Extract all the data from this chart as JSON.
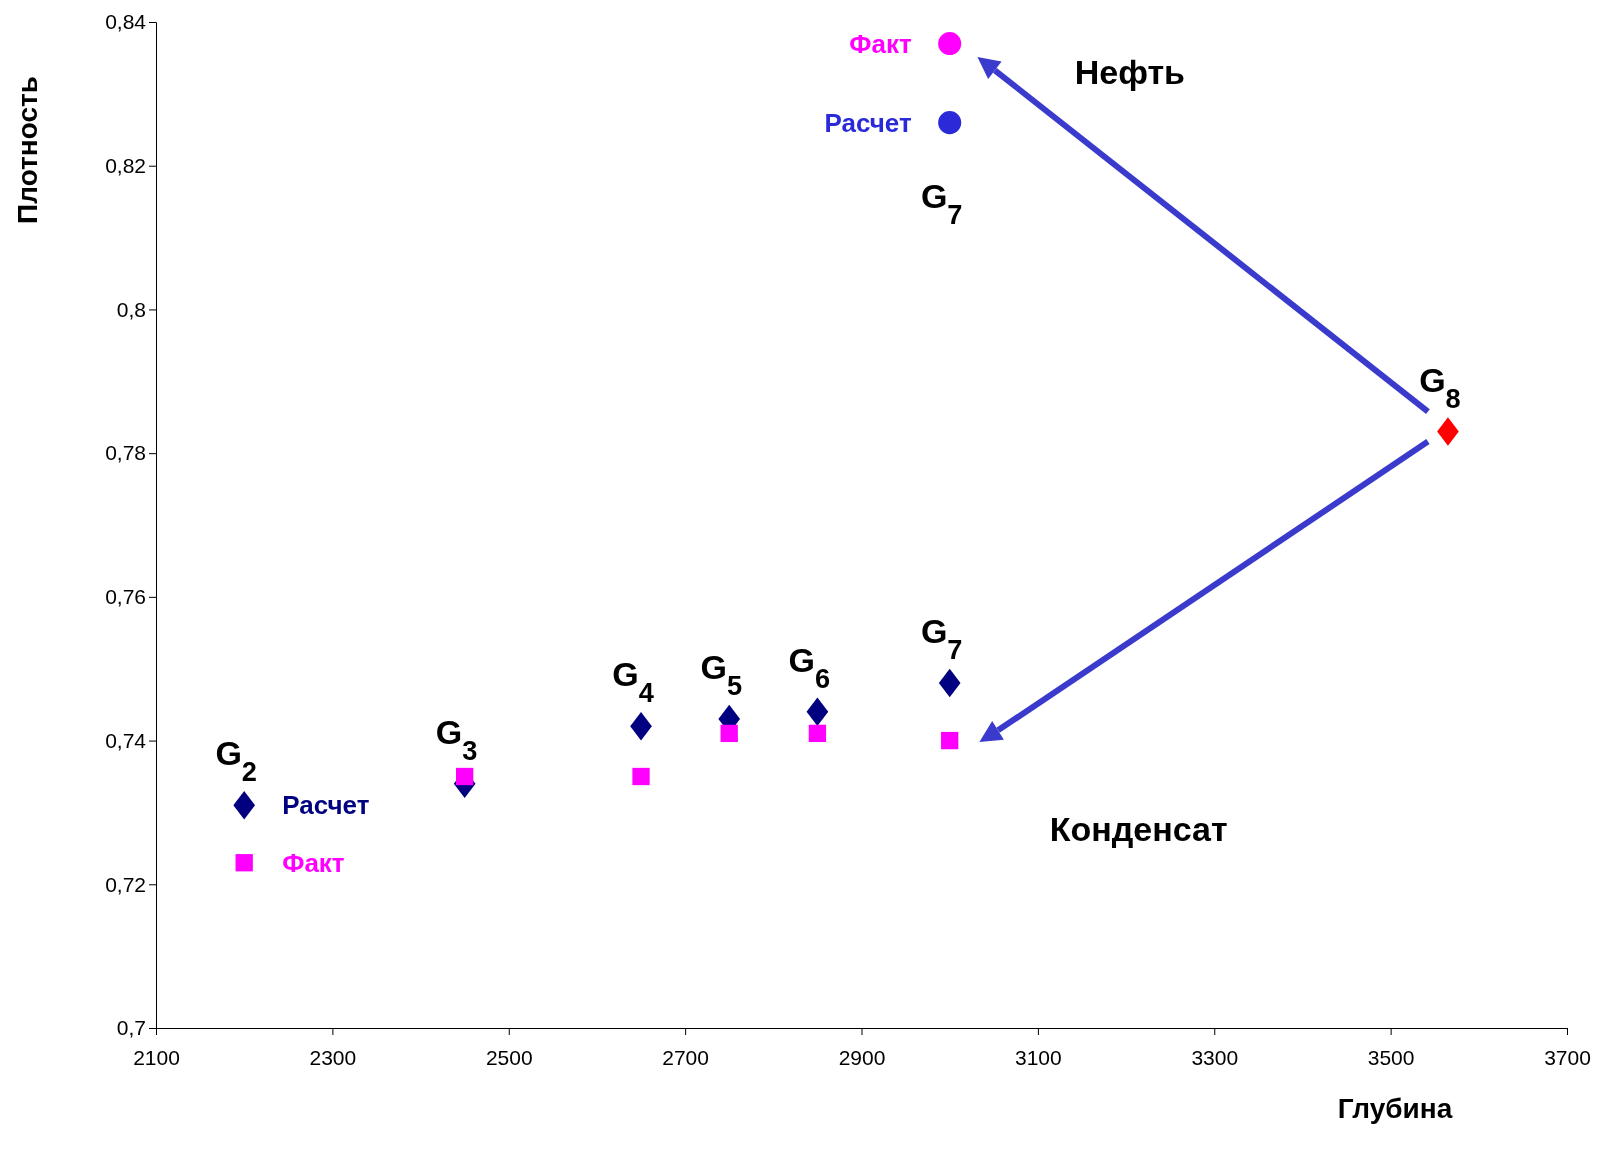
{
  "chart_data": {
    "type": "scatter",
    "xlabel": "Глубина",
    "ylabel": "Плотность",
    "xlim": [
      2100,
      3700
    ],
    "xticks": [
      2100,
      2300,
      2500,
      2700,
      2900,
      3100,
      3300,
      3500,
      3700
    ],
    "ylim": [
      0.7,
      0.84
    ],
    "yticks": [
      {
        "value": 0.7,
        "label": "0,7"
      },
      {
        "value": 0.72,
        "label": "0,72"
      },
      {
        "value": 0.74,
        "label": "0,74"
      },
      {
        "value": 0.76,
        "label": "0,76"
      },
      {
        "value": 0.78,
        "label": "0,78"
      },
      {
        "value": 0.8,
        "label": "0,8"
      },
      {
        "value": 0.82,
        "label": "0,82"
      },
      {
        "value": 0.84,
        "label": "0,84"
      }
    ],
    "grid": false,
    "series": [
      {
        "name": "Расчет",
        "color": "#000080",
        "marker": "diamond",
        "x": [
          2200,
          2450,
          2650,
          2750,
          2850,
          3000
        ],
        "values": [
          0.731,
          0.734,
          0.742,
          0.743,
          0.744,
          0.748
        ]
      },
      {
        "name": "Факт",
        "color": "#ff00ff",
        "marker": "square",
        "x": [
          2200,
          2450,
          2650,
          2750,
          2850,
          3000
        ],
        "values": [
          0.723,
          0.735,
          0.735,
          0.741,
          0.741,
          0.74
        ]
      },
      {
        "name": "Факт",
        "color": "#ff00ff",
        "marker": "circle",
        "x": [
          3000
        ],
        "values": [
          0.837
        ]
      },
      {
        "name": "Расчет",
        "color": "#2a2ad8",
        "marker": "circle",
        "x": [
          3000
        ],
        "values": [
          0.826
        ]
      },
      {
        "color": "#ff0000",
        "marker": "diamond",
        "x": [
          3565
        ],
        "values": [
          0.783
        ]
      }
    ],
    "annotations": [
      {
        "text": "G$_{2}$",
        "x": 2200,
        "y": 0.731
      },
      {
        "text": "G$_{3}$",
        "x": 2450,
        "y": 0.734
      },
      {
        "text": "G$_{4}$",
        "x": 2650,
        "y": 0.742
      },
      {
        "text": "G$_{5}$",
        "x": 2750,
        "y": 0.743
      },
      {
        "text": "G$_{6}$",
        "x": 2850,
        "y": 0.744
      },
      {
        "text": "G$_{7}$",
        "x": 3000,
        "y": 0.748
      },
      {
        "text": "G$_{7}$",
        "x": 3000,
        "y": 0.826
      },
      {
        "text": "G$_{8}$",
        "x": 3565,
        "y": 0.783
      },
      "Нефть",
      "Конденсат"
    ]
  }
}
